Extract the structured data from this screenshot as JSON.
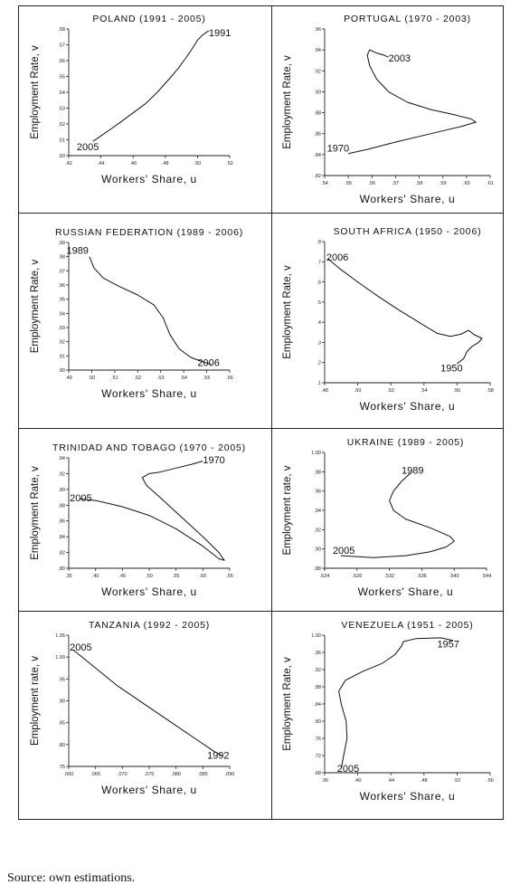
{
  "source": "Source: own estimations.",
  "chart_data": [
    {
      "type": "line",
      "title": "POLAND (1991 - 2005)",
      "xlabel": "Workers' Share, u",
      "ylabel": "Employment Rate, v",
      "xlim": [
        0.42,
        0.52
      ],
      "ylim": [
        0.5,
        0.58
      ],
      "xticks": [
        ".42",
        ".44",
        ".46",
        ".48",
        ".50",
        ".52"
      ],
      "yticks": [
        ".50",
        ".51",
        ".52",
        ".53",
        ".54",
        ".55",
        ".56",
        ".57",
        ".58"
      ],
      "annotations": [
        {
          "text": "1991",
          "x": 0.507,
          "y": 0.5755
        },
        {
          "text": "2005",
          "x": 0.425,
          "y": 0.5035
        }
      ],
      "series": [
        {
          "x": [
            0.507,
            0.503,
            0.5,
            0.497,
            0.493,
            0.488,
            0.482,
            0.475,
            0.468,
            0.46,
            0.452,
            0.445,
            0.438,
            0.435
          ],
          "y": [
            0.579,
            0.576,
            0.573,
            0.568,
            0.562,
            0.555,
            0.548,
            0.54,
            0.533,
            0.527,
            0.521,
            0.516,
            0.511,
            0.509
          ]
        }
      ]
    },
    {
      "type": "line",
      "title": "PORTUGAL (1970 - 2003)",
      "xlabel": "Workers' Share, u",
      "ylabel": "Employment Rate, v",
      "xlim": [
        0.54,
        0.61
      ],
      "ylim": [
        0.82,
        0.96
      ],
      "xticks": [
        ".54",
        ".55",
        ".56",
        ".57",
        ".58",
        ".59",
        ".60",
        ".61"
      ],
      "yticks": [
        ".82",
        ".84",
        ".86",
        ".88",
        ".90",
        ".92",
        ".94",
        ".96"
      ],
      "annotations": [
        {
          "text": "2003",
          "x": 0.567,
          "y": 0.929
        },
        {
          "text": "1970",
          "x": 0.541,
          "y": 0.843
        }
      ],
      "series": [
        {
          "x": [
            0.567,
            0.565,
            0.562,
            0.559,
            0.558,
            0.559,
            0.562,
            0.567,
            0.575,
            0.585,
            0.595,
            0.602,
            0.604,
            0.598,
            0.585,
            0.57,
            0.558,
            0.55
          ],
          "y": [
            0.933,
            0.935,
            0.937,
            0.94,
            0.935,
            0.925,
            0.912,
            0.9,
            0.89,
            0.883,
            0.878,
            0.874,
            0.871,
            0.867,
            0.86,
            0.852,
            0.845,
            0.841
          ]
        }
      ]
    },
    {
      "type": "line",
      "title": "RUSSIAN FEDERATION (1989 - 2006)",
      "xlabel": "Workers' Share, u",
      "ylabel": "Employment Rate, v",
      "xlim": [
        0.49,
        0.56
      ],
      "ylim": [
        0.9,
        0.99
      ],
      "xticks": [
        ".49",
        ".50",
        ".51",
        ".52",
        ".53",
        ".54",
        ".55",
        ".56"
      ],
      "yticks": [
        ".90",
        ".91",
        ".92",
        ".93",
        ".94",
        ".95",
        ".96",
        ".97",
        ".98",
        ".99"
      ],
      "annotations": [
        {
          "text": "1989",
          "x": 0.489,
          "y": 0.982
        },
        {
          "text": "2006",
          "x": 0.546,
          "y": 0.903
        }
      ],
      "series": [
        {
          "x": [
            0.499,
            0.501,
            0.505,
            0.512,
            0.52,
            0.527,
            0.531,
            0.534,
            0.538,
            0.543,
            0.548,
            0.552
          ],
          "y": [
            0.98,
            0.972,
            0.965,
            0.959,
            0.953,
            0.946,
            0.937,
            0.925,
            0.915,
            0.909,
            0.906,
            0.904
          ]
        }
      ]
    },
    {
      "type": "line",
      "title": "SOUTH AFRICA (1950 - 2006)",
      "xlabel": "Workers' Share, u",
      "ylabel": "Employment Rate, v",
      "xlim": [
        0.48,
        0.58
      ],
      "ylim": [
        0.1,
        0.8
      ],
      "xticks": [
        ".48",
        ".50",
        ".52",
        ".54",
        ".56",
        ".58"
      ],
      "yticks": [
        ".1",
        ".2",
        ".3",
        ".4",
        ".5",
        ".6",
        ".7",
        ".8"
      ],
      "annotations": [
        {
          "text": "2006",
          "x": 0.481,
          "y": 0.705
        },
        {
          "text": "1950",
          "x": 0.55,
          "y": 0.155
        }
      ],
      "series": [
        {
          "x": [
            0.482,
            0.49,
            0.5,
            0.512,
            0.525,
            0.538,
            0.548,
            0.556,
            0.562,
            0.567,
            0.57,
            0.575,
            0.573,
            0.569,
            0.566,
            0.564,
            0.56
          ],
          "y": [
            0.715,
            0.66,
            0.6,
            0.53,
            0.46,
            0.395,
            0.345,
            0.33,
            0.34,
            0.36,
            0.34,
            0.32,
            0.3,
            0.28,
            0.255,
            0.22,
            0.195
          ]
        }
      ]
    },
    {
      "type": "line",
      "title": "TRINIDAD AND TOBAGO (1970 - 2005)",
      "xlabel": "Workers' Share, u",
      "ylabel": "Employment Rate, v",
      "xlim": [
        0.35,
        0.65
      ],
      "ylim": [
        0.8,
        0.94
      ],
      "xticks": [
        ".35",
        ".40",
        ".45",
        ".50",
        ".55",
        ".60",
        ".65"
      ],
      "yticks": [
        ".80",
        ".82",
        ".84",
        ".86",
        ".88",
        ".90",
        ".92",
        ".94"
      ],
      "annotations": [
        {
          "text": "1970",
          "x": 0.6,
          "y": 0.933
        },
        {
          "text": "2005",
          "x": 0.352,
          "y": 0.885
        }
      ],
      "series": [
        {
          "x": [
            0.6,
            0.58,
            0.55,
            0.52,
            0.5,
            0.487,
            0.495,
            0.52,
            0.56,
            0.6,
            0.63,
            0.64,
            0.63,
            0.6,
            0.55,
            0.5,
            0.45,
            0.4,
            0.37
          ],
          "y": [
            0.936,
            0.932,
            0.927,
            0.922,
            0.92,
            0.915,
            0.905,
            0.89,
            0.865,
            0.84,
            0.82,
            0.81,
            0.812,
            0.828,
            0.85,
            0.867,
            0.878,
            0.886,
            0.888
          ]
        }
      ]
    },
    {
      "type": "line",
      "title": "UKRAINE (1989 - 2005)",
      "xlabel": "Workers' Share, u",
      "ylabel": "Employment rate, v",
      "xlim": [
        0.524,
        0.544
      ],
      "ylim": [
        0.88,
        1.0
      ],
      "xticks": [
        ".524",
        ".528",
        ".532",
        ".536",
        ".540",
        ".544"
      ],
      "yticks": [
        ".88",
        ".90",
        ".92",
        ".94",
        ".96",
        ".98",
        "1.00"
      ],
      "annotations": [
        {
          "text": "1989",
          "x": 0.5335,
          "y": 0.978
        },
        {
          "text": "2005",
          "x": 0.525,
          "y": 0.895
        }
      ],
      "series": [
        {
          "x": [
            0.5348,
            0.5335,
            0.5325,
            0.532,
            0.5325,
            0.534,
            0.537,
            0.5395,
            0.54,
            0.539,
            0.537,
            0.534,
            0.53,
            0.526
          ],
          "y": [
            0.98,
            0.97,
            0.96,
            0.95,
            0.94,
            0.931,
            0.922,
            0.913,
            0.908,
            0.902,
            0.897,
            0.893,
            0.891,
            0.893
          ]
        }
      ]
    },
    {
      "type": "line",
      "title": "TANZANIA (1992 - 2005)",
      "xlabel": "Workers' Share, u",
      "ylabel": "Employment rate, v",
      "xlim": [
        0.06,
        0.09
      ],
      "ylim": [
        0.75,
        1.05
      ],
      "xticks": [
        ".060",
        ".065",
        ".070",
        ".075",
        ".080",
        ".085",
        ".090"
      ],
      "yticks": [
        ".75",
        ".80",
        ".85",
        ".90",
        ".95",
        "1.00",
        "1.05"
      ],
      "annotations": [
        {
          "text": "2005",
          "x": 0.0602,
          "y": 1.015
        },
        {
          "text": "1992",
          "x": 0.0858,
          "y": 0.768
        }
      ],
      "series": [
        {
          "x": [
            0.0608,
            0.063,
            0.066,
            0.069,
            0.072,
            0.075,
            0.078,
            0.081,
            0.084,
            0.087,
            0.0885
          ],
          "y": [
            1.017,
            0.995,
            0.965,
            0.935,
            0.91,
            0.885,
            0.86,
            0.835,
            0.81,
            0.785,
            0.775
          ]
        }
      ]
    },
    {
      "type": "line",
      "title": "VENEZUELA (1951 - 2005)",
      "xlabel": "Workers' Share, u",
      "ylabel": "Employment Rate, v",
      "xlim": [
        0.36,
        0.56
      ],
      "ylim": [
        0.68,
        1.0
      ],
      "xticks": [
        ".36",
        ".40",
        ".44",
        ".48",
        ".52",
        ".56"
      ],
      "yticks": [
        ".68",
        ".72",
        ".76",
        ".80",
        ".84",
        ".88",
        ".92",
        ".96",
        "1.00"
      ],
      "annotations": [
        {
          "text": "1957",
          "x": 0.496,
          "y": 0.972
        },
        {
          "text": "2005",
          "x": 0.375,
          "y": 0.682
        }
      ],
      "series": [
        {
          "x": [
            0.515,
            0.5,
            0.47,
            0.455,
            0.453,
            0.445,
            0.43,
            0.405,
            0.385,
            0.377,
            0.38,
            0.386,
            0.387,
            0.383,
            0.38
          ],
          "y": [
            0.988,
            0.994,
            0.992,
            0.985,
            0.975,
            0.955,
            0.935,
            0.915,
            0.895,
            0.87,
            0.84,
            0.8,
            0.76,
            0.72,
            0.69
          ]
        }
      ]
    }
  ]
}
